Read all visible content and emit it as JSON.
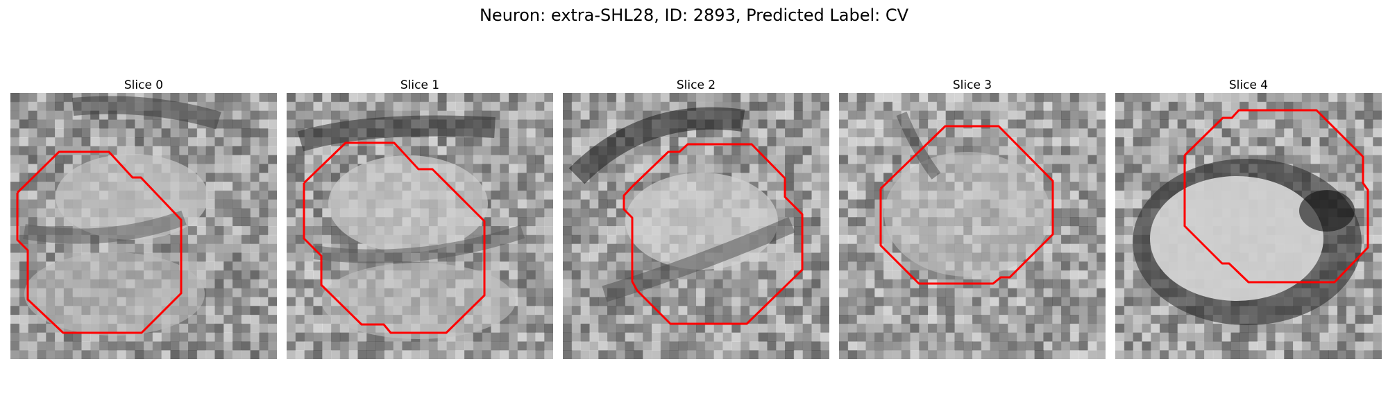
{
  "figure": {
    "title": "Neuron: extra-SHL28, ID: 2893, Predicted Label: CV"
  },
  "panels": [
    {
      "title": "Slice 0"
    },
    {
      "title": "Slice 1"
    },
    {
      "title": "Slice 2"
    },
    {
      "title": "Slice 3"
    },
    {
      "title": "Slice 4"
    }
  ],
  "colors": {
    "outline": "#ff0000",
    "background": "#ffffff"
  }
}
